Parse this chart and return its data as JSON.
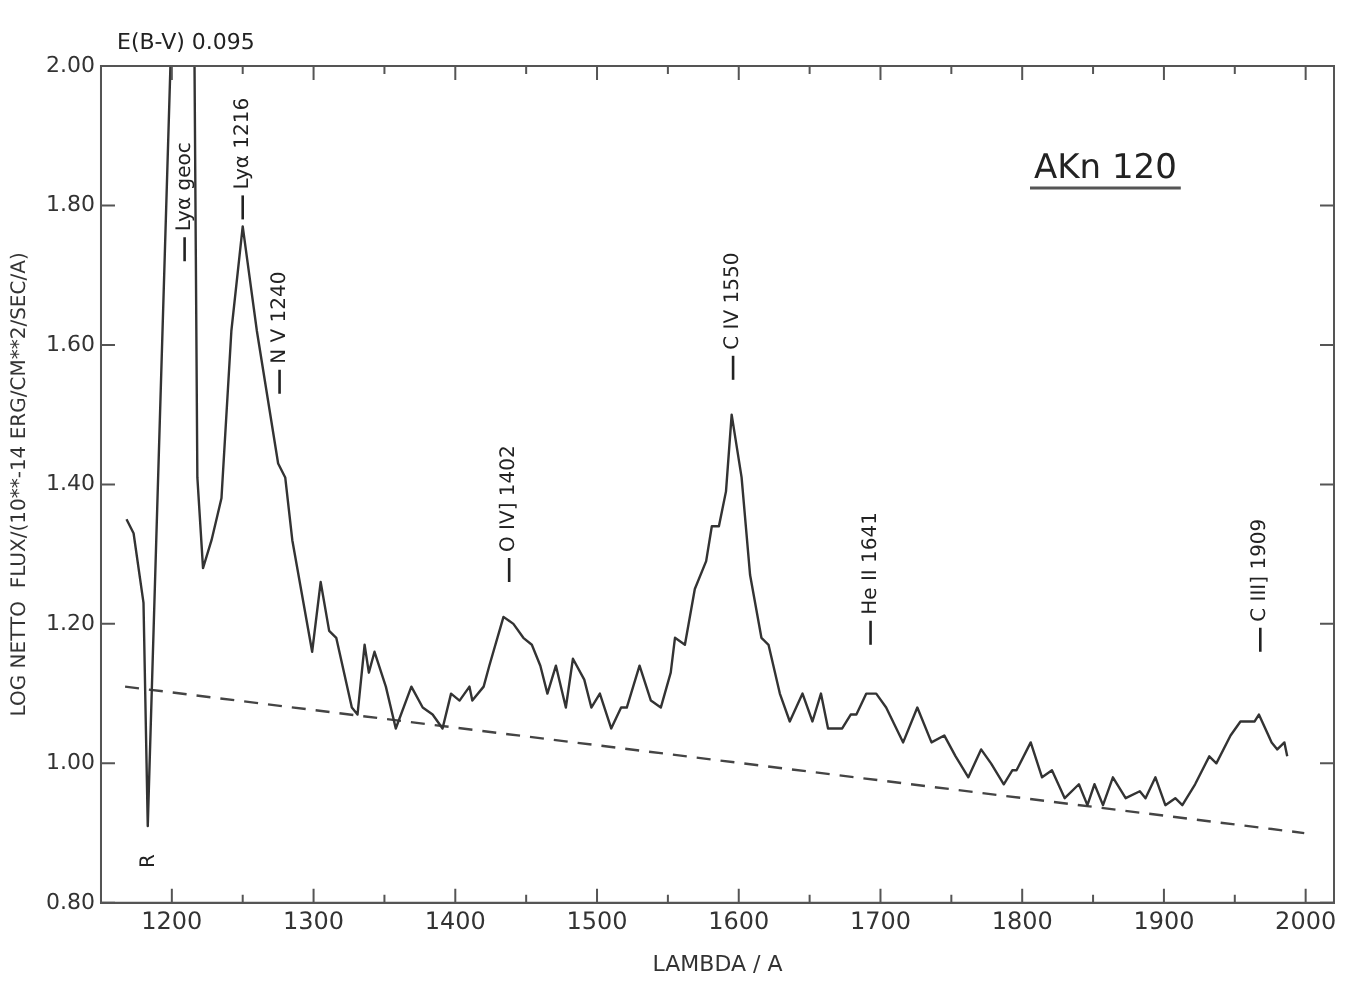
{
  "chart_data": {
    "type": "line",
    "title": "AKn 120",
    "xlabel": "LAMBDA / A",
    "ylabel": "LOG NETTO  FLUX/(10**-14 ERG/CM**2/SEC/A)",
    "xlim": [
      1150,
      2020
    ],
    "ylim": [
      0.8,
      2.0
    ],
    "xticks": [
      {
        "value": 1200,
        "label": "1200"
      },
      {
        "value": 1250,
        "label": null
      },
      {
        "value": 1300,
        "label": "1300"
      },
      {
        "value": 1350,
        "label": null
      },
      {
        "value": 1400,
        "label": "1400"
      },
      {
        "value": 1450,
        "label": null
      },
      {
        "value": 1500,
        "label": "1500"
      },
      {
        "value": 1550,
        "label": null
      },
      {
        "value": 1600,
        "label": "1600"
      },
      {
        "value": 1650,
        "label": null
      },
      {
        "value": 1700,
        "label": "1700"
      },
      {
        "value": 1750,
        "label": null
      },
      {
        "value": 1800,
        "label": "1800"
      },
      {
        "value": 1850,
        "label": null
      },
      {
        "value": 1900,
        "label": "1900"
      },
      {
        "value": 1950,
        "label": null
      },
      {
        "value": 2000,
        "label": "2000"
      }
    ],
    "yticks": [
      {
        "value": 0.8,
        "label": "0.80"
      },
      {
        "value": 1.0,
        "label": "1.00"
      },
      {
        "value": 1.2,
        "label": "1.20"
      },
      {
        "value": 1.4,
        "label": "1.40"
      },
      {
        "value": 1.6,
        "label": "1.60"
      },
      {
        "value": 1.8,
        "label": "1.80"
      },
      {
        "value": 2.0,
        "label": "2.00"
      }
    ],
    "grid": false,
    "legend": false,
    "marker": "none",
    "series": [
      {
        "color": "#333333",
        "line_style": "solid",
        "x": [
          1168,
          1173,
          1180,
          1183,
          1189,
          1199,
          1207,
          1216,
          1218,
          1222,
          1228,
          1235,
          1242,
          1250,
          1260,
          1275,
          1280,
          1285,
          1299,
          1305,
          1311,
          1316,
          1327,
          1331,
          1336,
          1339,
          1343,
          1351,
          1358,
          1369,
          1377,
          1384,
          1391,
          1397,
          1403,
          1410,
          1412,
          1420,
          1424,
          1434,
          1441,
          1448,
          1454,
          1460,
          1465,
          1471,
          1478,
          1483,
          1491,
          1496,
          1502,
          1510,
          1517,
          1521,
          1530,
          1538,
          1545,
          1552,
          1555,
          1562,
          1569,
          1577,
          1581,
          1586,
          1591,
          1595,
          1602,
          1608,
          1616,
          1621,
          1629,
          1636,
          1645,
          1652,
          1658,
          1663,
          1673,
          1679,
          1683,
          1690,
          1697,
          1704,
          1716,
          1726,
          1736,
          1745,
          1753,
          1762,
          1771,
          1778,
          1787,
          1793,
          1796,
          1806,
          1814,
          1821,
          1830,
          1840,
          1846,
          1851,
          1857,
          1864,
          1873,
          1883,
          1887,
          1894,
          1901,
          1908,
          1913,
          1922,
          1932,
          1937,
          1947,
          1954,
          1964,
          1967,
          1976,
          1980,
          1985,
          1987
        ],
        "values": [
          1.35,
          1.33,
          1.23,
          0.91,
          1.32,
          2.0,
          null,
          2.0,
          1.41,
          1.28,
          1.32,
          1.38,
          1.62,
          1.77,
          1.62,
          1.43,
          1.41,
          1.32,
          1.16,
          1.26,
          1.19,
          1.18,
          1.08,
          1.07,
          1.17,
          1.13,
          1.16,
          1.11,
          1.05,
          1.11,
          1.08,
          1.07,
          1.05,
          1.1,
          1.09,
          1.11,
          1.09,
          1.11,
          1.14,
          1.21,
          1.2,
          1.18,
          1.17,
          1.14,
          1.1,
          1.14,
          1.08,
          1.15,
          1.12,
          1.08,
          1.1,
          1.05,
          1.08,
          1.08,
          1.14,
          1.09,
          1.08,
          1.13,
          1.18,
          1.17,
          1.25,
          1.29,
          1.34,
          1.34,
          1.39,
          1.5,
          1.41,
          1.27,
          1.18,
          1.17,
          1.1,
          1.06,
          1.1,
          1.06,
          1.1,
          1.05,
          1.05,
          1.07,
          1.07,
          1.1,
          1.1,
          1.08,
          1.03,
          1.08,
          1.03,
          1.04,
          1.01,
          0.98,
          1.02,
          1.0,
          0.97,
          0.99,
          0.99,
          1.03,
          0.98,
          0.99,
          0.95,
          0.97,
          0.94,
          0.97,
          0.94,
          0.98,
          0.95,
          0.96,
          0.95,
          0.98,
          0.94,
          0.95,
          0.94,
          0.97,
          1.01,
          1.0,
          1.04,
          1.06,
          1.06,
          1.07,
          1.03,
          1.02,
          1.03,
          1.01
        ]
      },
      {
        "type": "line",
        "color": "#444444",
        "line_style": "dashed",
        "x": [
          1167,
          1999
        ],
        "values": [
          1.11,
          0.9
        ]
      }
    ],
    "annotations": [
      "E(B-V) 0.095",
      "Lyα geoc",
      "Lyα 1216",
      "N V 1240",
      "O IV] 1402",
      "C IV 1550",
      "He II 1641",
      "C III] 1909",
      "R"
    ]
  }
}
